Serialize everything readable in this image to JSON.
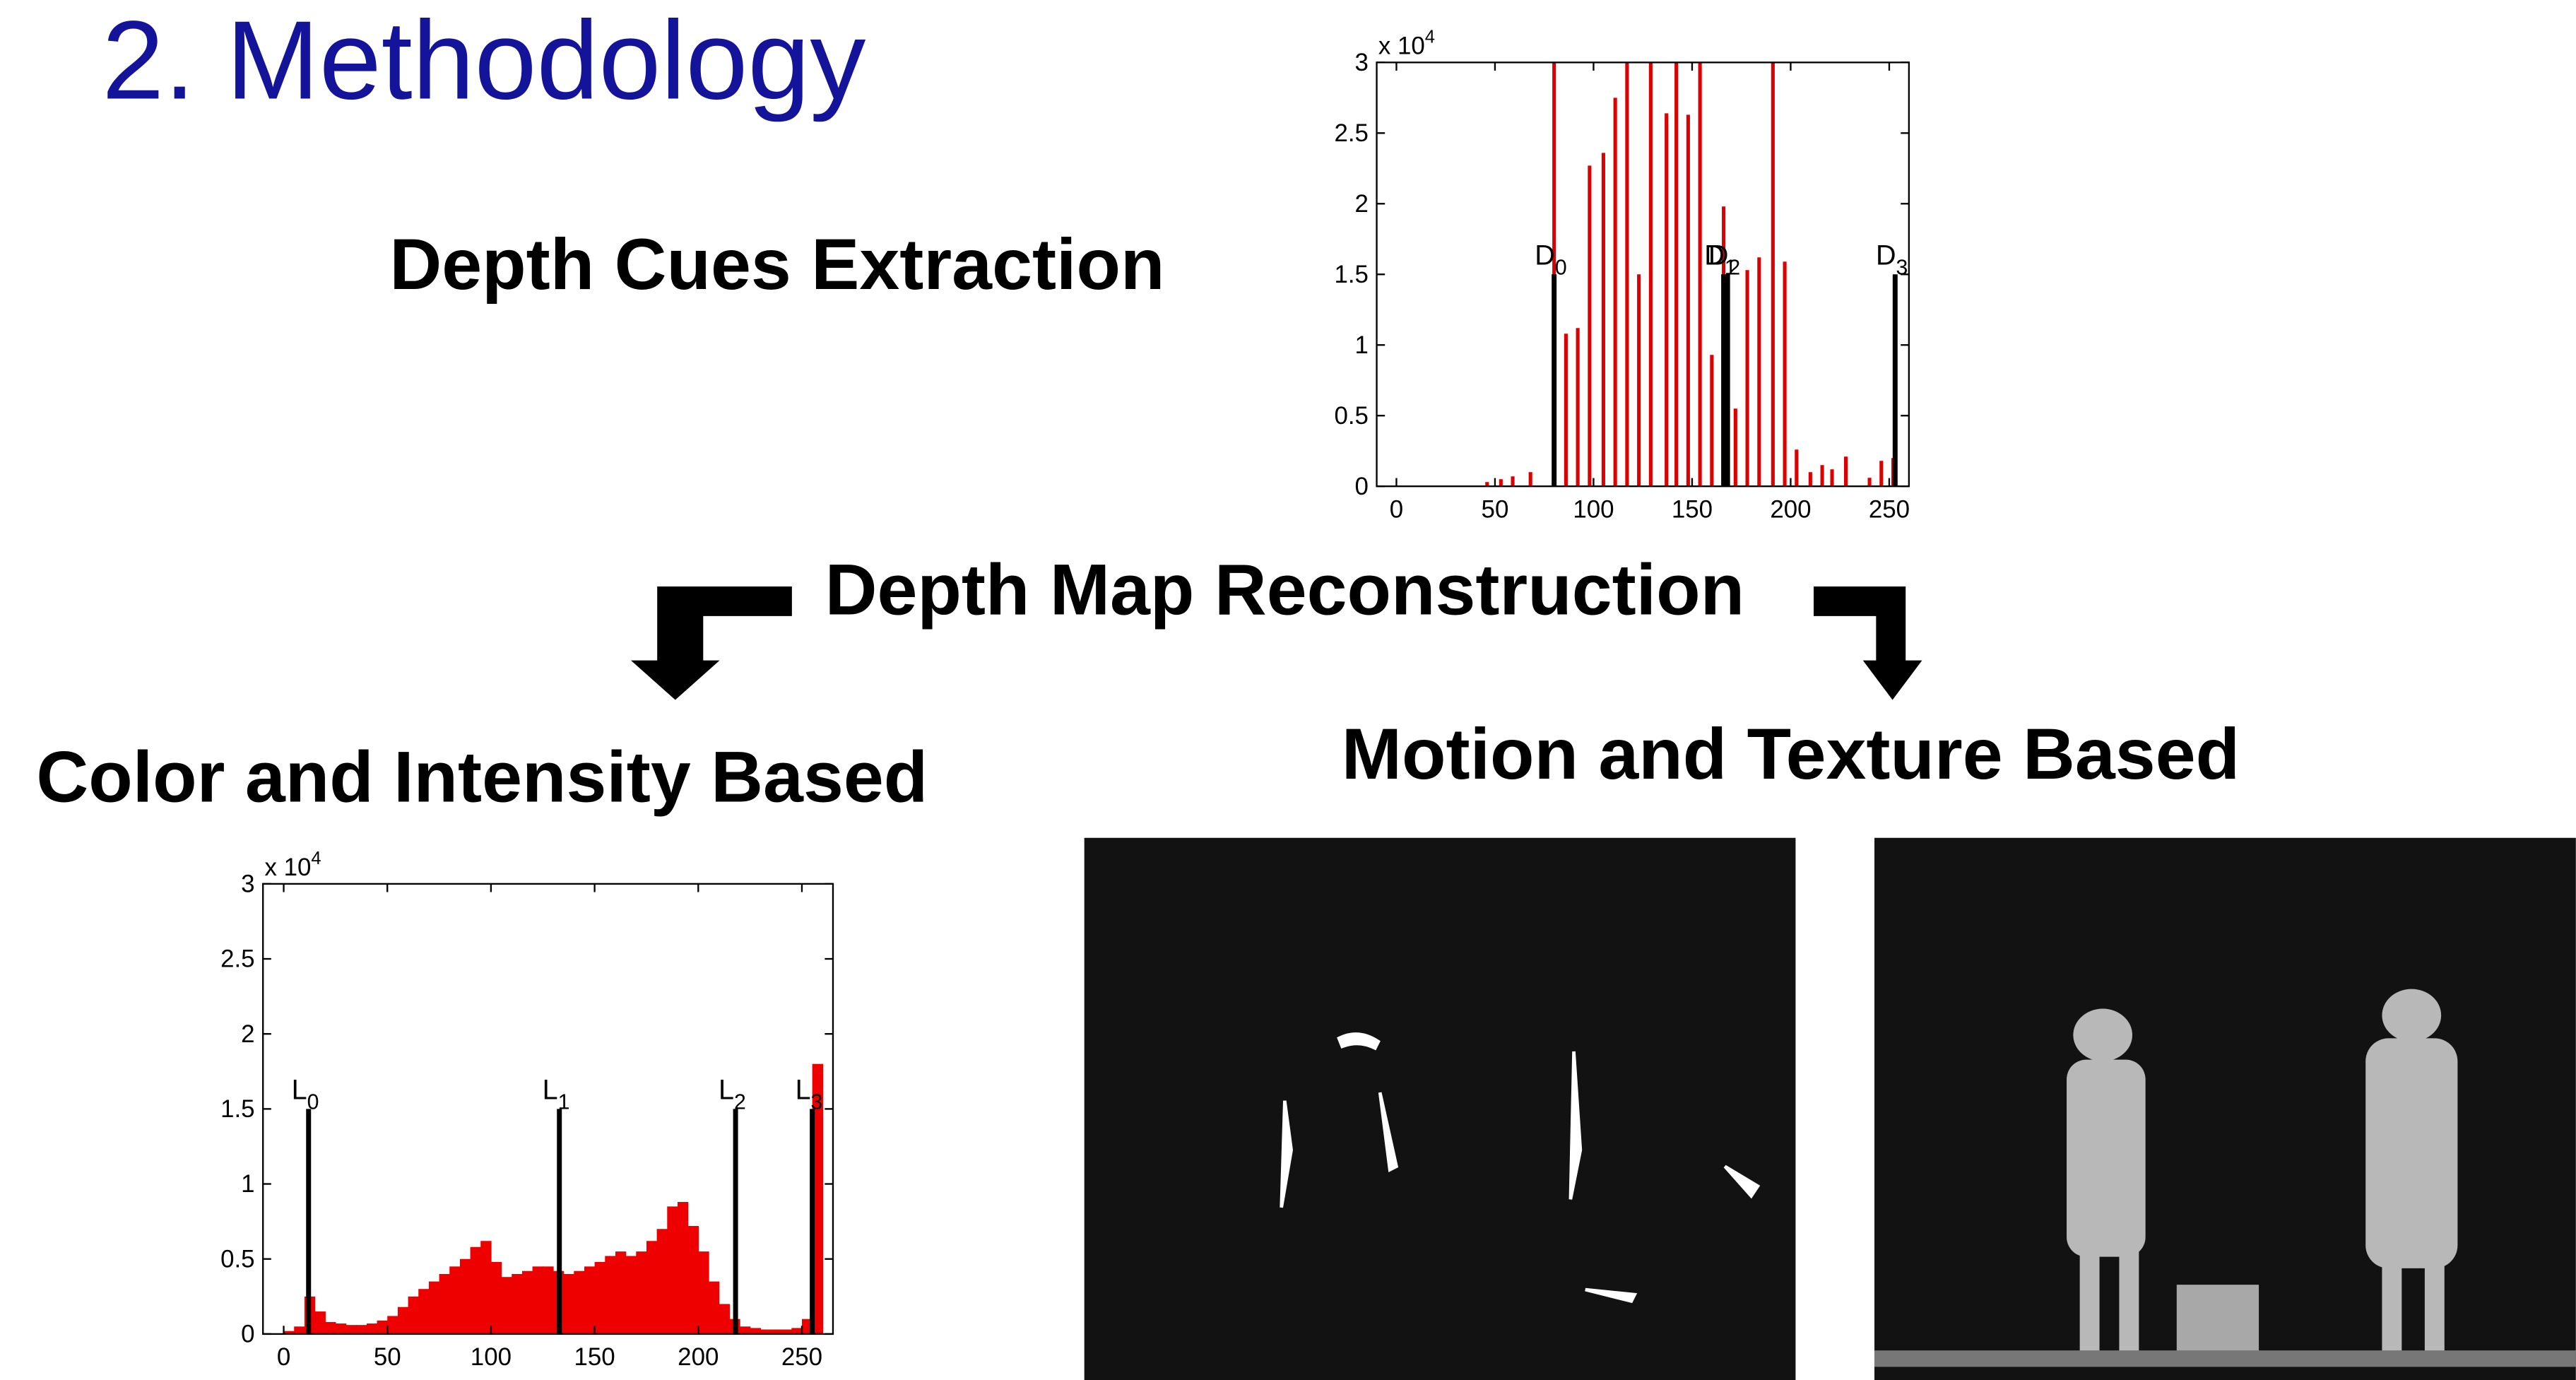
{
  "title": "2. Methodology",
  "headings": {
    "depth_cues": "Depth Cues Extraction",
    "reconstruction": "Depth Map Reconstruction",
    "color": "Color and Intensity Based",
    "motion": "Motion and Texture Based"
  },
  "chart_data": [
    {
      "type": "bar",
      "x": [
        46,
        53,
        59,
        68,
        80,
        86,
        92,
        98,
        105,
        111,
        117,
        123,
        129,
        137,
        142,
        148,
        154,
        160,
        166,
        172,
        178,
        184,
        191,
        197,
        203,
        210,
        216,
        221,
        228,
        240,
        246,
        252
      ],
      "values": [
        0.03,
        0.05,
        0.07,
        0.1,
        3,
        1.08,
        1.12,
        2.27,
        2.36,
        2.75,
        3,
        1.5,
        3,
        2.64,
        3,
        2.63,
        3,
        0.93,
        1.98,
        0.55,
        1.53,
        1.62,
        3,
        1.59,
        0.26,
        0.1,
        0.15,
        0.12,
        0.21,
        0.06,
        0.18,
        0.2
      ],
      "color": "#dd0000",
      "xlim": [
        -10,
        260
      ],
      "ylim": [
        0,
        3
      ],
      "xticks": [
        0,
        50,
        100,
        150,
        200,
        250
      ],
      "yticks": [
        0,
        0.5,
        1,
        1.5,
        2,
        2.5,
        3
      ],
      "y_multiplier": {
        "base": "x 10",
        "exponent": "4"
      },
      "marker_color": "#000000",
      "markers": [
        {
          "letter": "D",
          "sub": "0",
          "x": 80,
          "height": 1.5
        },
        {
          "letter": "D",
          "sub": "1",
          "x": 166,
          "height": 1.5
        },
        {
          "letter": "D",
          "sub": "2",
          "x": 168,
          "height": 1.5
        },
        {
          "letter": "D",
          "sub": "3",
          "x": 253,
          "height": 1.5
        }
      ]
    },
    {
      "type": "histogram",
      "bins": [
        0,
        5,
        10,
        15,
        20,
        25,
        30,
        35,
        40,
        45,
        50,
        55,
        60,
        65,
        70,
        75,
        80,
        85,
        90,
        95,
        100,
        105,
        110,
        115,
        120,
        125,
        130,
        135,
        140,
        145,
        150,
        155,
        160,
        165,
        170,
        175,
        180,
        185,
        190,
        195,
        200,
        205,
        210,
        215,
        220,
        225,
        230,
        235,
        240,
        245,
        250,
        255,
        260
      ],
      "values": [
        0.02,
        0.05,
        0.25,
        0.15,
        0.08,
        0.07,
        0.06,
        0.06,
        0.07,
        0.09,
        0.12,
        0.18,
        0.25,
        0.3,
        0.35,
        0.4,
        0.45,
        0.5,
        0.58,
        0.62,
        0.48,
        0.38,
        0.4,
        0.42,
        0.45,
        0.45,
        0.42,
        0.4,
        0.42,
        0.45,
        0.48,
        0.52,
        0.55,
        0.52,
        0.55,
        0.62,
        0.7,
        0.85,
        0.88,
        0.72,
        0.55,
        0.35,
        0.2,
        0.1,
        0.05,
        0.04,
        0.03,
        0.03,
        0.03,
        0.04,
        0.1,
        1.8
      ],
      "color": "#ee0000",
      "xlim": [
        -10,
        265
      ],
      "ylim": [
        0,
        3
      ],
      "xticks": [
        0,
        50,
        100,
        150,
        200,
        250
      ],
      "yticks": [
        0,
        0.5,
        1,
        1.5,
        2,
        2.5,
        3
      ],
      "y_multiplier": {
        "base": "x 10",
        "exponent": "4"
      },
      "marker_color": "#000000",
      "markers": [
        {
          "letter": "L",
          "sub": "0",
          "x": 12,
          "height": 1.5
        },
        {
          "letter": "L",
          "sub": "1",
          "x": 133,
          "height": 1.5
        },
        {
          "letter": "L",
          "sub": "2",
          "x": 218,
          "height": 1.5
        },
        {
          "letter": "L",
          "sub": "3",
          "x": 255,
          "height": 1.5
        }
      ]
    }
  ]
}
